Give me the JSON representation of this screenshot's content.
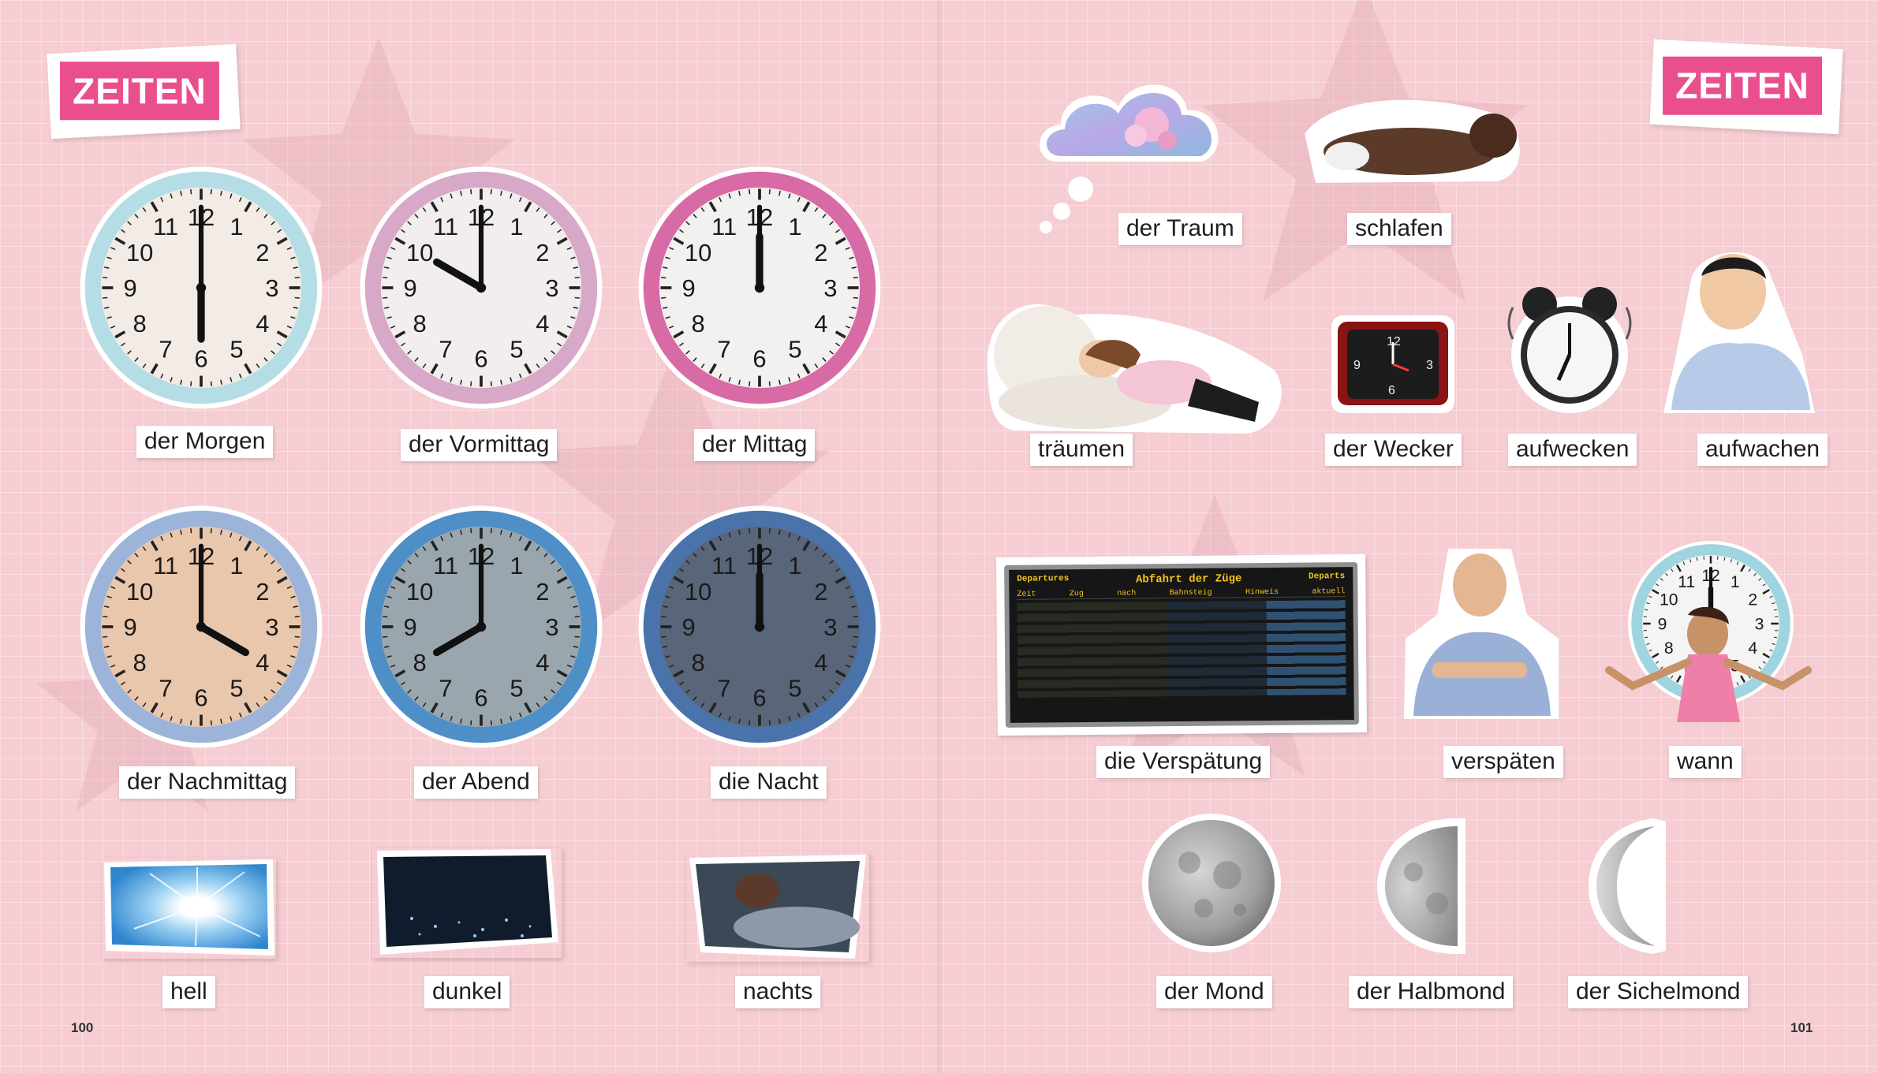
{
  "spread": {
    "left_page": {
      "tag": "ZEITEN",
      "page_number": "100",
      "clocks": [
        {
          "label": "der Morgen",
          "time": "6:00"
        },
        {
          "label": "der Vormittag",
          "time": "10:00"
        },
        {
          "label": "der Mittag",
          "time": "12:00"
        },
        {
          "label": "der Nachmittag",
          "time": "16:00"
        },
        {
          "label": "der Abend",
          "time": "20:00"
        },
        {
          "label": "die Nacht",
          "time": "24:00"
        }
      ],
      "words": [
        "hell",
        "dunkel",
        "nachts"
      ]
    },
    "right_page": {
      "tag": "ZEITEN",
      "page_number": "101",
      "words": [
        "der Traum",
        "schlafen",
        "träumen",
        "der Wecker",
        "aufwecken",
        "aufwachen",
        "die Verspätung",
        "verspäten",
        "wann",
        "der Mond",
        "der Halbmond",
        "der Sichelmond"
      ],
      "departure_board": {
        "header_left": "Departures",
        "title": "Abfahrt der Züge",
        "header_right": "Departs",
        "columns": [
          "Zeit",
          "Zug",
          "nach",
          "Bahnsteig",
          "Hinweis",
          "aktuell"
        ]
      }
    }
  },
  "colors": {
    "accent": "#ea4f8d",
    "background": "#f6cdd2"
  }
}
